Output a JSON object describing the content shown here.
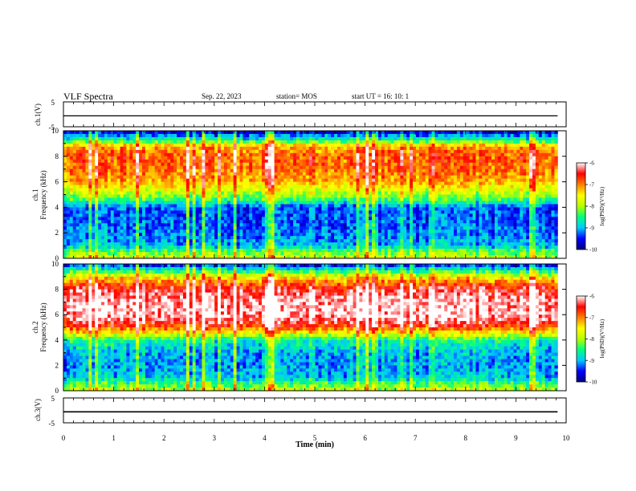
{
  "header": {
    "title": "VLF Spectra",
    "date": "Sep. 22, 2023",
    "station": "station= MOS",
    "start": "start  UT =   16: 10: 1"
  },
  "colors": {
    "spectrum": [
      "#000080",
      "#0000ff",
      "#00c8ff",
      "#00ff80",
      "#b4ff00",
      "#ffff00",
      "#ff8000",
      "#ff0000",
      "#ffffff"
    ]
  },
  "chart_data": [
    {
      "type": "line",
      "name": "ch.1 waveform",
      "ylabel": "ch.1(V)",
      "ylim": [
        -5,
        5
      ],
      "y_ticks": [
        "5",
        "-5"
      ],
      "level": -0.6,
      "x_range_min": [
        0,
        9.83
      ]
    },
    {
      "type": "heatmap",
      "name": "ch.1 spectrogram",
      "ylabel_channel": "ch.1",
      "ylabel": "Frequency (kHz)",
      "ylim": [
        0,
        10
      ],
      "y_ticks": [
        "0",
        "2",
        "4",
        "6",
        "8",
        "10"
      ],
      "x_range_min": [
        0,
        9.83
      ],
      "colorbar": {
        "label": "log(PSD)(V²/Hz)",
        "range": [
          -10,
          -6
        ],
        "ticks": [
          "-6",
          "-7",
          "-8",
          "-9",
          "-10"
        ]
      },
      "profile_freq_khz": [
        0,
        0.5,
        1,
        2,
        3,
        4,
        4.5,
        5,
        5.5,
        6,
        7,
        8,
        8.8,
        9.3,
        10
      ],
      "profile_log_psd": [
        -7.8,
        -8.2,
        -9.0,
        -9.2,
        -9.3,
        -9.3,
        -8.5,
        -8.0,
        -7.6,
        -7.2,
        -6.9,
        -6.8,
        -7.2,
        -8.6,
        -9.8
      ]
    },
    {
      "type": "heatmap",
      "name": "ch.2 spectrogram",
      "ylabel_channel": "ch.2",
      "ylabel": "Frequency (kHz)",
      "ylim": [
        0,
        10
      ],
      "y_ticks": [
        "0",
        "2",
        "4",
        "6",
        "8",
        "10"
      ],
      "x_range_min": [
        0,
        9.83
      ],
      "colorbar": {
        "label": "log(PSD)(V²/Hz)",
        "range": [
          -10,
          -6
        ],
        "ticks": [
          "-6",
          "-7",
          "-8",
          "-9",
          "-10"
        ]
      },
      "profile_freq_khz": [
        0,
        0.5,
        1,
        2,
        3,
        4,
        4.5,
        5,
        5.5,
        6,
        7,
        8,
        8.8,
        9.3,
        10
      ],
      "profile_log_psd": [
        -7.8,
        -8.3,
        -8.9,
        -9.1,
        -9.0,
        -8.6,
        -7.6,
        -6.8,
        -6.3,
        -6.1,
        -6.1,
        -6.4,
        -7.2,
        -8.2,
        -9.6
      ]
    },
    {
      "type": "line",
      "name": "ch.3 waveform",
      "ylabel": "ch.3(V)",
      "ylim": [
        -5,
        5
      ],
      "y_ticks": [
        "5",
        "-5"
      ],
      "level": -0.6,
      "x_range_min": [
        0,
        9.83
      ]
    }
  ],
  "xaxis": {
    "label": "Time (min)",
    "xlim": [
      0,
      10
    ],
    "ticks": [
      "0",
      "1",
      "2",
      "3",
      "4",
      "5",
      "6",
      "7",
      "8",
      "9",
      "10"
    ]
  }
}
